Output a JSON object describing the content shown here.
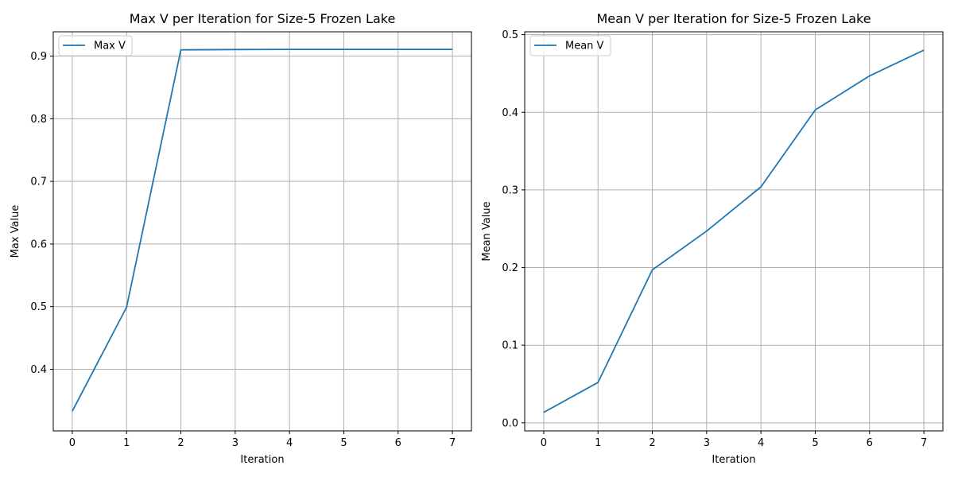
{
  "chart_data": [
    {
      "type": "line",
      "title": "Max V per Iteration for Size-5 Frozen Lake",
      "xlabel": "Iteration",
      "ylabel": "Max Value",
      "x": [
        0,
        1,
        2,
        3,
        4,
        5,
        6,
        7
      ],
      "xticks": [
        "0",
        "1",
        "2",
        "3",
        "4",
        "5",
        "6",
        "7"
      ],
      "yticks": [
        "0.4",
        "0.5",
        "0.6",
        "0.7",
        "0.8",
        "0.9"
      ],
      "ytick_values": [
        0.4,
        0.5,
        0.6,
        0.7,
        0.8,
        0.9
      ],
      "xlim": [
        -0.35,
        7.35
      ],
      "ylim": [
        0.3016,
        0.9388
      ],
      "grid": true,
      "legend": "upper-left",
      "series": [
        {
          "name": "Max V",
          "color": "#1f77b4",
          "values": [
            0.333,
            0.499,
            0.91,
            0.9105,
            0.9107,
            0.9107,
            0.9107,
            0.9107
          ]
        }
      ]
    },
    {
      "type": "line",
      "title": "Mean V per Iteration for Size-5 Frozen Lake",
      "xlabel": "Iteration",
      "ylabel": "Mean Value",
      "x": [
        0,
        1,
        2,
        3,
        4,
        5,
        6,
        7
      ],
      "xticks": [
        "0",
        "1",
        "2",
        "3",
        "4",
        "5",
        "6",
        "7"
      ],
      "yticks": [
        "0.0",
        "0.1",
        "0.2",
        "0.3",
        "0.4",
        "0.5"
      ],
      "ytick_values": [
        0.0,
        0.1,
        0.2,
        0.3,
        0.4,
        0.5
      ],
      "xlim": [
        -0.35,
        7.35
      ],
      "ylim": [
        -0.0104,
        0.5037
      ],
      "grid": true,
      "legend": "upper-left",
      "series": [
        {
          "name": "Mean V",
          "color": "#1f77b4",
          "values": [
            0.0135,
            0.052,
            0.197,
            0.247,
            0.304,
            0.403,
            0.447,
            0.48
          ]
        }
      ]
    }
  ]
}
